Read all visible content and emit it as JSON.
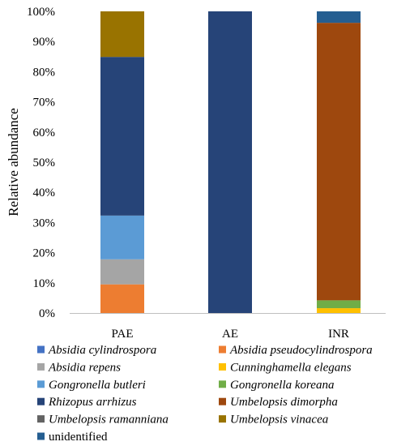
{
  "chart_data": {
    "type": "bar",
    "stacked": true,
    "title": "",
    "xlabel": "",
    "ylabel": "Relative abundance",
    "ylim": [
      0,
      100
    ],
    "y_ticks": [
      "0%",
      "10%",
      "20%",
      "30%",
      "40%",
      "50%",
      "60%",
      "70%",
      "80%",
      "90%",
      "100%"
    ],
    "categories": [
      "PAE",
      "AE",
      "INR"
    ],
    "grid": false,
    "legend_position": "bottom",
    "series": [
      {
        "name": "Absidia cylindrospora",
        "color": "#4472C4",
        "italic": true,
        "values": [
          0,
          0,
          0
        ]
      },
      {
        "name": "Absidia pseudocylindrospora",
        "color": "#ED7D31",
        "italic": true,
        "values": [
          9.5,
          0,
          0
        ]
      },
      {
        "name": "Absidia repens",
        "color": "#A5A5A5",
        "italic": true,
        "values": [
          8.3,
          0,
          0
        ]
      },
      {
        "name": "Cunninghamella elegans",
        "color": "#FFC000",
        "italic": true,
        "values": [
          0,
          0,
          1.6
        ]
      },
      {
        "name": "Gongronella butleri",
        "color": "#5B9BD5",
        "italic": true,
        "values": [
          14.5,
          0,
          0
        ]
      },
      {
        "name": "Gongronella koreana",
        "color": "#70AD47",
        "italic": true,
        "values": [
          0,
          0,
          2.6
        ]
      },
      {
        "name": "Rhizopus arrhizus",
        "color": "#264478",
        "italic": true,
        "values": [
          52.6,
          100,
          0
        ]
      },
      {
        "name": "Umbelopsis dimorpha",
        "color": "#9E480E",
        "italic": true,
        "values": [
          0,
          0,
          92.0
        ]
      },
      {
        "name": "Umbelopsis ramanniana",
        "color": "#636363",
        "italic": true,
        "values": [
          0,
          0,
          0
        ]
      },
      {
        "name": "Umbelopsis vinacea",
        "color": "#997300",
        "italic": true,
        "values": [
          15.1,
          0,
          0
        ]
      },
      {
        "name": "unidentified",
        "color": "#255E91",
        "italic": false,
        "values": [
          0,
          0,
          3.8
        ]
      }
    ]
  }
}
